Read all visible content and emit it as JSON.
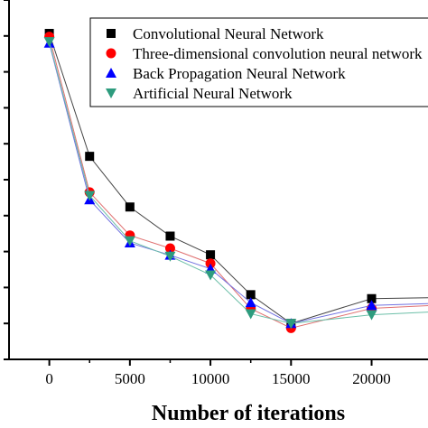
{
  "chart_data": {
    "type": "line",
    "xlabel": "Number of iterations",
    "ylabel": "",
    "title": "",
    "xlim": [
      -2500,
      23500
    ],
    "ylim": [
      0,
      1
    ],
    "x_ticks": [
      0,
      5000,
      10000,
      15000,
      20000
    ],
    "x": [
      0,
      2500,
      5000,
      7500,
      10000,
      12500,
      15000,
      20000
    ],
    "grid": false,
    "legend_position": "top-right",
    "series": [
      {
        "name": "Convolutional Neural Network",
        "marker": "square",
        "color": "#000000",
        "values": [
          0.907,
          0.565,
          0.424,
          0.343,
          0.291,
          0.18,
          0.1,
          0.169
        ]
      },
      {
        "name": "Three-dimensional convolution neural network",
        "marker": "circle",
        "color": "#ff0000",
        "values": [
          0.898,
          0.465,
          0.345,
          0.309,
          0.267,
          0.141,
          0.087,
          0.142
        ]
      },
      {
        "name": "Back Propagation Neural Network",
        "marker": "triangle-up",
        "color": "#0000ff",
        "values": [
          0.88,
          0.444,
          0.324,
          0.29,
          0.252,
          0.158,
          0.1,
          0.15
        ]
      },
      {
        "name": "Artificial Neural Network",
        "marker": "triangle-down",
        "color": "#2e9c7e",
        "values": [
          0.884,
          0.456,
          0.33,
          0.287,
          0.235,
          0.127,
          0.1,
          0.124
        ]
      }
    ]
  }
}
